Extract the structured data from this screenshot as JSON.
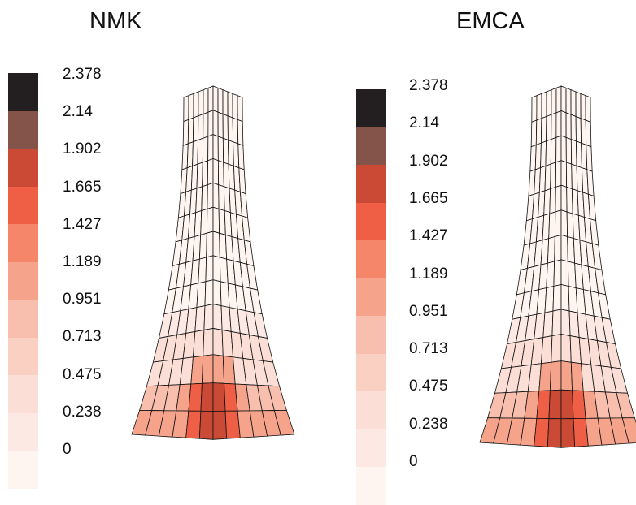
{
  "panels": [
    {
      "title": "NMK"
    },
    {
      "title": "EMCA"
    }
  ],
  "colorbar": {
    "labels": [
      "2.378",
      "2.14",
      "1.902",
      "1.665",
      "1.427",
      "1.189",
      "0.951",
      "0.713",
      "0.475",
      "0.238",
      "0"
    ],
    "colors": [
      "#231f20",
      "#845349",
      "#cb4a36",
      "#ef5f45",
      "#f5866a",
      "#f6a38c",
      "#f8bfae",
      "#fad0c3",
      "#fbded5",
      "#fde9e3",
      "#fef4f0"
    ]
  }
}
